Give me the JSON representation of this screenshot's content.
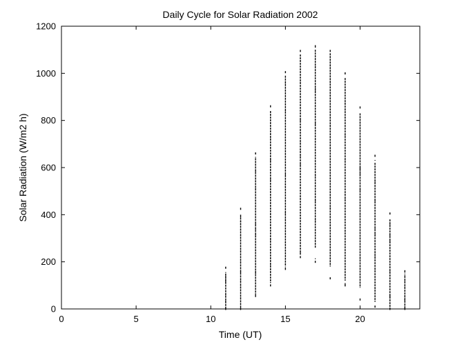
{
  "chart_data": {
    "type": "scatter",
    "title": "Daily Cycle for Solar Radiation 2002",
    "xlabel": "Time (UT)",
    "ylabel": "Solar Radiation (W/m2 h)",
    "xlim": [
      0,
      24
    ],
    "ylim": [
      0,
      1200
    ],
    "xticks": [
      0,
      5,
      10,
      15,
      20
    ],
    "yticks": [
      0,
      200,
      400,
      600,
      800,
      1000,
      1200
    ],
    "grid": false,
    "legend": "none",
    "marker_color": "#000000",
    "series": [
      {
        "x": [
          11,
          12,
          13,
          14,
          15,
          16,
          17,
          18,
          19,
          20,
          21,
          22,
          23
        ],
        "min": [
          0,
          0,
          55,
          100,
          170,
          220,
          200,
          130,
          100,
          40,
          10,
          0,
          0
        ],
        "max": [
          175,
          425,
          660,
          860,
          1005,
          1095,
          1115,
          1095,
          1000,
          855,
          650,
          405,
          160
        ],
        "dense_lo": [
          0,
          0,
          60,
          110,
          180,
          230,
          260,
          180,
          120,
          90,
          30,
          0,
          0
        ],
        "dense_hi": [
          150,
          400,
          640,
          840,
          990,
          1080,
          1100,
          1085,
          980,
          830,
          620,
          380,
          140
        ]
      }
    ]
  }
}
